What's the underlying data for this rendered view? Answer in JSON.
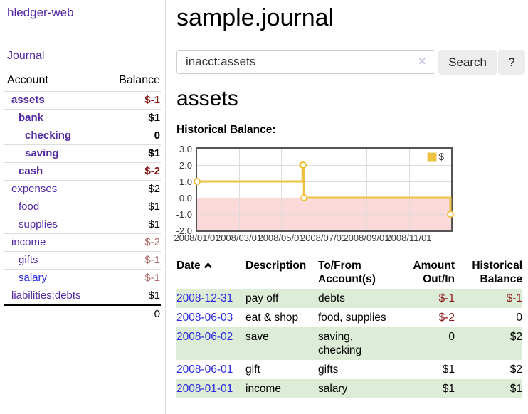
{
  "colors": {
    "link_purple": "#5229a3",
    "link_blue": "#2a2ae0",
    "negative_strong": "#8b1a1a",
    "negative_muted": "#b36b6b",
    "row_green": "#ddecd6",
    "chart_series": "#edc240",
    "chart_zero_line": "#8b0000",
    "chart_negative_band": "#fcd9d9"
  },
  "sidebar": {
    "brand": "hledger-web",
    "nav_journal": "Journal",
    "accounts": {
      "header_account": "Account",
      "header_balance": "Balance",
      "rows": [
        {
          "name": "assets",
          "balance": "$-1"
        },
        {
          "name": "bank",
          "balance": "$1"
        },
        {
          "name": "checking",
          "balance": "0"
        },
        {
          "name": "saving",
          "balance": "$1"
        },
        {
          "name": "cash",
          "balance": "$-2"
        },
        {
          "name": "expenses",
          "balance": "$2"
        },
        {
          "name": "food",
          "balance": "$1"
        },
        {
          "name": "supplies",
          "balance": "$1"
        },
        {
          "name": "income",
          "balance": "$-2"
        },
        {
          "name": "gifts",
          "balance": "$-1"
        },
        {
          "name": "salary",
          "balance": "$-1"
        },
        {
          "name": "liabilities:debts",
          "balance": "$1"
        }
      ],
      "total": "0"
    }
  },
  "header": {
    "title": "sample.journal"
  },
  "search": {
    "value": "inacct:assets",
    "clear_icon": "×",
    "button_label": "Search",
    "help_label": "?"
  },
  "register": {
    "heading": "assets",
    "chart_title": "Historical Balance:"
  },
  "chart_data": {
    "type": "line",
    "style": "step",
    "title": "Historical Balance:",
    "legend_position": "top-right",
    "series": [
      {
        "name": "$",
        "points": [
          [
            "2008-01-01",
            1
          ],
          [
            "2008-06-01",
            2
          ],
          [
            "2008-06-02",
            2
          ],
          [
            "2008-06-03",
            0
          ],
          [
            "2008-12-31",
            -1
          ]
        ]
      }
    ],
    "x_range": [
      "2008-01-01",
      "2009-01-01"
    ],
    "ylim": [
      -2,
      3
    ],
    "y_ticks": [
      3.0,
      2.0,
      1.0,
      0.0,
      -1.0,
      -2.0
    ],
    "x_ticks": [
      {
        "date": "2008-01-01",
        "label": "2008/01/01"
      },
      {
        "date": "2008-03-01",
        "label": "2008/03/01"
      },
      {
        "date": "2008-05-01",
        "label": "2008/05/01"
      },
      {
        "date": "2008-07-01",
        "label": "2008/07/01"
      },
      {
        "date": "2008-09-01",
        "label": "2008/09/01"
      },
      {
        "date": "2008-11-01",
        "label": "2008/11/01"
      }
    ],
    "grid": true,
    "negative_region_shaded": true
  },
  "table": {
    "headers": {
      "date": "Date",
      "description": "Description",
      "accounts": "To/From Account(s)",
      "amount": "Amount Out/In",
      "balance": "Historical Balance"
    },
    "rows": [
      {
        "date": "2008-12-31",
        "description": "pay off",
        "accounts": "debts",
        "amount": "$-1",
        "balance": "$-1"
      },
      {
        "date": "2008-06-03",
        "description": "eat & shop",
        "accounts": "food, supplies",
        "amount": "$-2",
        "balance": "0"
      },
      {
        "date": "2008-06-02",
        "description": "save",
        "accounts": "saving, checking",
        "amount": "0",
        "balance": "$2"
      },
      {
        "date": "2008-06-01",
        "description": "gift",
        "accounts": "gifts",
        "amount": "$1",
        "balance": "$2"
      },
      {
        "date": "2008-01-01",
        "description": "income",
        "accounts": "salary",
        "amount": "$1",
        "balance": "$1"
      }
    ]
  }
}
